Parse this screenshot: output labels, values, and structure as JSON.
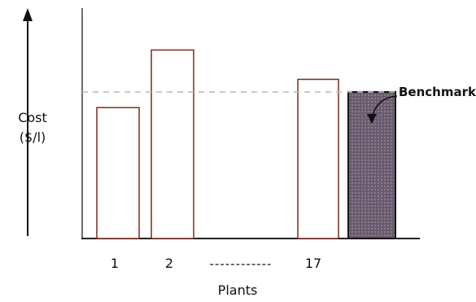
{
  "chart_data": {
    "type": "bar",
    "title": "",
    "xlabel": "Plants",
    "ylabel_line1": "Cost",
    "ylabel_line2": "($/l)",
    "categories": [
      "1",
      "2",
      "17",
      ""
    ],
    "values": [
      125,
      180,
      152,
      140
    ],
    "benchmark_value": 140,
    "benchmark_label": "Benchmark",
    "ellipsis_label": "------------",
    "ylim": [
      0,
      220
    ],
    "grid": false,
    "colors": {
      "bar_outline": "#7a2a1a",
      "bar_fill": "#ffffff",
      "benchmark_fill": "#6a5a6e",
      "benchmark_outline": "#111111",
      "dashed_line": "#bdbdbd",
      "axis": "#6e6e6e"
    }
  }
}
